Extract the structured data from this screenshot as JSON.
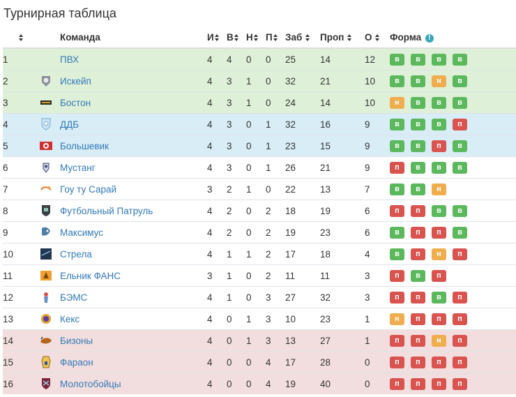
{
  "title": "Турнирная таблица",
  "headers": {
    "pos": "",
    "team": "Команда",
    "played": "И",
    "won": "В",
    "drawn": "Н",
    "lost": "П",
    "gf": "Заб",
    "ga": "Проп",
    "pts": "О",
    "form": "Форма"
  },
  "form_codes": {
    "W": "в",
    "D": "н",
    "L": "п"
  },
  "colors": {
    "win": "#5cb85c",
    "draw": "#f0ad4e",
    "loss": "#d9534f",
    "zone_green": "#dff0d8",
    "zone_blue": "#d9edf7",
    "zone_red": "#f2dede",
    "link": "#337ab7"
  },
  "rows": [
    {
      "pos": "1",
      "team": "ПВХ",
      "crest": "none",
      "zone": "green",
      "p": "4",
      "w": "4",
      "d": "0",
      "l": "0",
      "gf": "25",
      "ga": "14",
      "pts": "12",
      "form": [
        "W",
        "W",
        "W",
        "W"
      ]
    },
    {
      "pos": "2",
      "team": "Искейп",
      "crest": "escape-crest-icon",
      "zone": "green",
      "p": "4",
      "w": "3",
      "d": "1",
      "l": "0",
      "gf": "32",
      "ga": "21",
      "pts": "10",
      "form": [
        "W",
        "W",
        "D",
        "W"
      ]
    },
    {
      "pos": "3",
      "team": "Бостон",
      "crest": "boston-crest-icon",
      "zone": "green",
      "p": "4",
      "w": "3",
      "d": "1",
      "l": "0",
      "gf": "24",
      "ga": "14",
      "pts": "10",
      "form": [
        "D",
        "W",
        "W",
        "W"
      ]
    },
    {
      "pos": "4",
      "team": "ДДБ",
      "crest": "ddb-crest-icon",
      "zone": "blue",
      "p": "4",
      "w": "3",
      "d": "0",
      "l": "1",
      "gf": "32",
      "ga": "16",
      "pts": "9",
      "form": [
        "W",
        "W",
        "W",
        "L"
      ]
    },
    {
      "pos": "5",
      "team": "Большевик",
      "crest": "bolshevik-crest-icon",
      "zone": "blue",
      "p": "4",
      "w": "3",
      "d": "0",
      "l": "1",
      "gf": "23",
      "ga": "15",
      "pts": "9",
      "form": [
        "W",
        "W",
        "L",
        "W"
      ]
    },
    {
      "pos": "6",
      "team": "Мустанг",
      "crest": "mustang-crest-icon",
      "zone": "none",
      "p": "4",
      "w": "3",
      "d": "0",
      "l": "1",
      "gf": "26",
      "ga": "21",
      "pts": "9",
      "form": [
        "L",
        "W",
        "W",
        "W"
      ]
    },
    {
      "pos": "7",
      "team": "Гоу ту Сарай",
      "crest": "go-to-saray-crest-icon",
      "zone": "none",
      "p": "3",
      "w": "2",
      "d": "1",
      "l": "0",
      "gf": "22",
      "ga": "13",
      "pts": "7",
      "form": [
        "W",
        "W",
        "D"
      ]
    },
    {
      "pos": "8",
      "team": "Футбольный Патруль",
      "crest": "patrol-crest-icon",
      "zone": "none",
      "p": "4",
      "w": "2",
      "d": "0",
      "l": "2",
      "gf": "18",
      "ga": "19",
      "pts": "6",
      "form": [
        "L",
        "L",
        "W",
        "W"
      ]
    },
    {
      "pos": "9",
      "team": "Максимус",
      "crest": "maximus-crest-icon",
      "zone": "none",
      "p": "4",
      "w": "2",
      "d": "0",
      "l": "2",
      "gf": "19",
      "ga": "23",
      "pts": "6",
      "form": [
        "W",
        "L",
        "L",
        "W"
      ]
    },
    {
      "pos": "10",
      "team": "Стрела",
      "crest": "strela-crest-icon",
      "zone": "none",
      "p": "4",
      "w": "1",
      "d": "1",
      "l": "2",
      "gf": "17",
      "ga": "18",
      "pts": "4",
      "form": [
        "W",
        "L",
        "D",
        "L"
      ]
    },
    {
      "pos": "11",
      "team": "Ельник ФАНС",
      "crest": "elnik-crest-icon",
      "zone": "none",
      "p": "3",
      "w": "1",
      "d": "0",
      "l": "2",
      "gf": "11",
      "ga": "11",
      "pts": "3",
      "form": [
        "L",
        "W",
        "L"
      ]
    },
    {
      "pos": "12",
      "team": "БЭМС",
      "crest": "bems-crest-icon",
      "zone": "none",
      "p": "4",
      "w": "1",
      "d": "0",
      "l": "3",
      "gf": "27",
      "ga": "32",
      "pts": "3",
      "form": [
        "L",
        "L",
        "W",
        "L"
      ]
    },
    {
      "pos": "13",
      "team": "Кекс",
      "crest": "keks-crest-icon",
      "zone": "none",
      "p": "4",
      "w": "0",
      "d": "1",
      "l": "3",
      "gf": "10",
      "ga": "23",
      "pts": "1",
      "form": [
        "D",
        "L",
        "L",
        "L"
      ]
    },
    {
      "pos": "14",
      "team": "Бизоны",
      "crest": "bizony-crest-icon",
      "zone": "red",
      "p": "4",
      "w": "0",
      "d": "1",
      "l": "3",
      "gf": "13",
      "ga": "27",
      "pts": "1",
      "form": [
        "L",
        "L",
        "D",
        "L"
      ]
    },
    {
      "pos": "15",
      "team": "Фараон",
      "crest": "faraon-crest-icon",
      "zone": "red",
      "p": "4",
      "w": "0",
      "d": "0",
      "l": "4",
      "gf": "17",
      "ga": "28",
      "pts": "0",
      "form": [
        "L",
        "L",
        "L",
        "L"
      ]
    },
    {
      "pos": "16",
      "team": "Молотобойцы",
      "crest": "molotoboitsy-crest-icon",
      "zone": "red",
      "p": "4",
      "w": "0",
      "d": "0",
      "l": "4",
      "gf": "19",
      "ga": "40",
      "pts": "0",
      "form": [
        "L",
        "L",
        "L",
        "L"
      ]
    }
  ]
}
